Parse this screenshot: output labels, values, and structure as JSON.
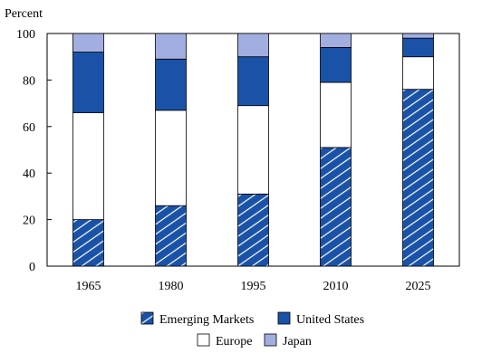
{
  "chart_data": {
    "type": "bar",
    "stacked": true,
    "title": "",
    "ylabel": "Percent",
    "xlabel": "",
    "ylim": [
      0,
      100
    ],
    "yticks": [
      0,
      20,
      40,
      60,
      80,
      100
    ],
    "categories": [
      "1965",
      "1980",
      "1995",
      "2010",
      "2025"
    ],
    "series": [
      {
        "name": "Emerging Markets",
        "values": [
          20,
          26,
          31,
          51,
          76
        ],
        "color": "#1a52a8",
        "pattern": "hatch"
      },
      {
        "name": "Europe",
        "values": [
          46,
          41,
          38,
          28,
          14
        ],
        "color": "#ffffff",
        "pattern": "solid"
      },
      {
        "name": "United States",
        "values": [
          26,
          22,
          21,
          15,
          8
        ],
        "color": "#1a52a8",
        "pattern": "solid"
      },
      {
        "name": "Japan",
        "values": [
          8,
          11,
          10,
          6,
          2
        ],
        "color": "#a3aee0",
        "pattern": "solid"
      }
    ],
    "legend": {
      "placement": "bottom",
      "rows": [
        [
          "Emerging Markets",
          "United States"
        ],
        [
          "Europe",
          "Japan"
        ]
      ]
    },
    "grid": false
  }
}
